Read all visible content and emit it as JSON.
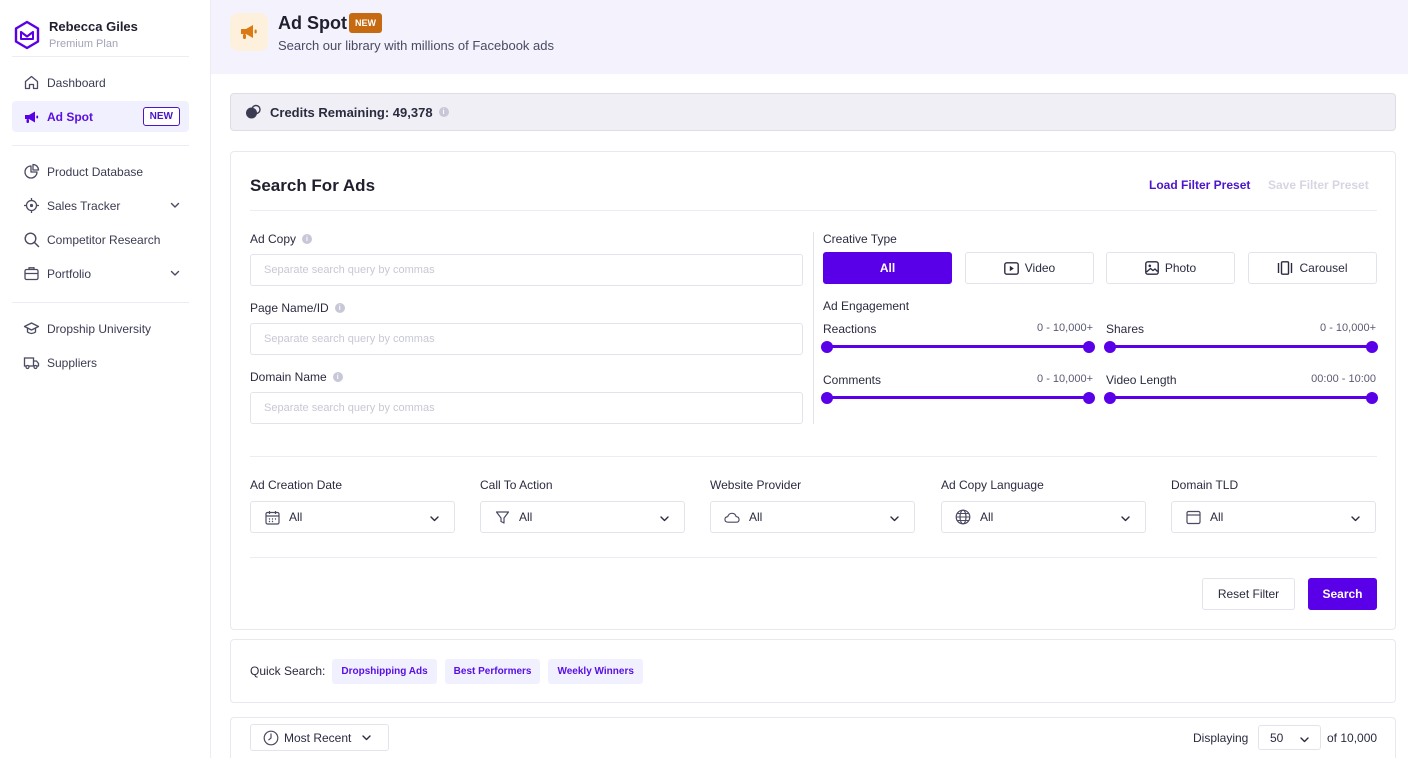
{
  "colors": {
    "accent": "#5a00e8",
    "accent_text": "#4a16c8",
    "new_badge": "#c56a11",
    "header_bg": "#f3f2fd"
  },
  "profile": {
    "name": "Rebecca Giles",
    "plan": "Premium Plan"
  },
  "sidebar": {
    "group1": [
      {
        "label": "Dashboard",
        "icon": "home-icon"
      },
      {
        "label": "Ad Spot",
        "icon": "megaphone-icon",
        "badge": "NEW",
        "active": true
      }
    ],
    "group2": [
      {
        "label": "Product Database",
        "icon": "pie-chart-icon"
      },
      {
        "label": "Sales Tracker",
        "icon": "target-icon",
        "expandable": true
      },
      {
        "label": "Competitor Research",
        "icon": "search-icon"
      },
      {
        "label": "Portfolio",
        "icon": "briefcase-icon",
        "expandable": true
      }
    ],
    "group3": [
      {
        "label": "Dropship University",
        "icon": "graduation-cap-icon"
      },
      {
        "label": "Suppliers",
        "icon": "truck-icon"
      }
    ]
  },
  "header": {
    "title": "Ad Spot",
    "badge": "NEW",
    "subtitle": "Search our library with millions of Facebook ads"
  },
  "credits": {
    "label": "Credits Remaining: 49,378",
    "info": "i"
  },
  "search": {
    "title": "Search For Ads",
    "load_preset": "Load Filter Preset",
    "save_preset": "Save Filter Preset",
    "fields": [
      {
        "label": "Ad Copy",
        "placeholder": "Separate search query by commas"
      },
      {
        "label": "Page Name/ID",
        "placeholder": "Separate search query by commas"
      },
      {
        "label": "Domain Name",
        "placeholder": "Separate search query by commas"
      }
    ],
    "creative_type": {
      "label": "Creative Type",
      "options": [
        "All",
        "Video",
        "Photo",
        "Carousel"
      ],
      "selected": "All"
    },
    "engagement": {
      "label": "Ad Engagement",
      "sliders": [
        {
          "label": "Reactions",
          "range": "0 - 10,000+",
          "min": 0,
          "max": 1
        },
        {
          "label": "Shares",
          "range": "0 - 10,000+",
          "min": 0,
          "max": 1
        },
        {
          "label": "Comments",
          "range": "0 - 10,000+",
          "min": 0,
          "max": 1
        },
        {
          "label": "Video Length",
          "range": "00:00 - 10:00",
          "min": 0,
          "max": 1
        }
      ]
    },
    "dropdowns": [
      {
        "label": "Ad Creation Date",
        "value": "All",
        "icon": "calendar-icon"
      },
      {
        "label": "Call To Action",
        "value": "All",
        "icon": "filter-icon"
      },
      {
        "label": "Website Provider",
        "value": "All",
        "icon": "cloud-icon"
      },
      {
        "label": "Ad Copy Language",
        "value": "All",
        "icon": "globe-icon"
      },
      {
        "label": "Domain TLD",
        "value": "All",
        "icon": "browser-icon"
      }
    ],
    "reset_label": "Reset Filter",
    "search_label": "Search"
  },
  "quick_search": {
    "label": "Quick Search:",
    "chips": [
      "Dropshipping Ads",
      "Best Performers",
      "Weekly Winners"
    ]
  },
  "results": {
    "sort": "Most Recent",
    "displaying_label": "Displaying",
    "per_page": "50",
    "total": "of 10,000"
  }
}
